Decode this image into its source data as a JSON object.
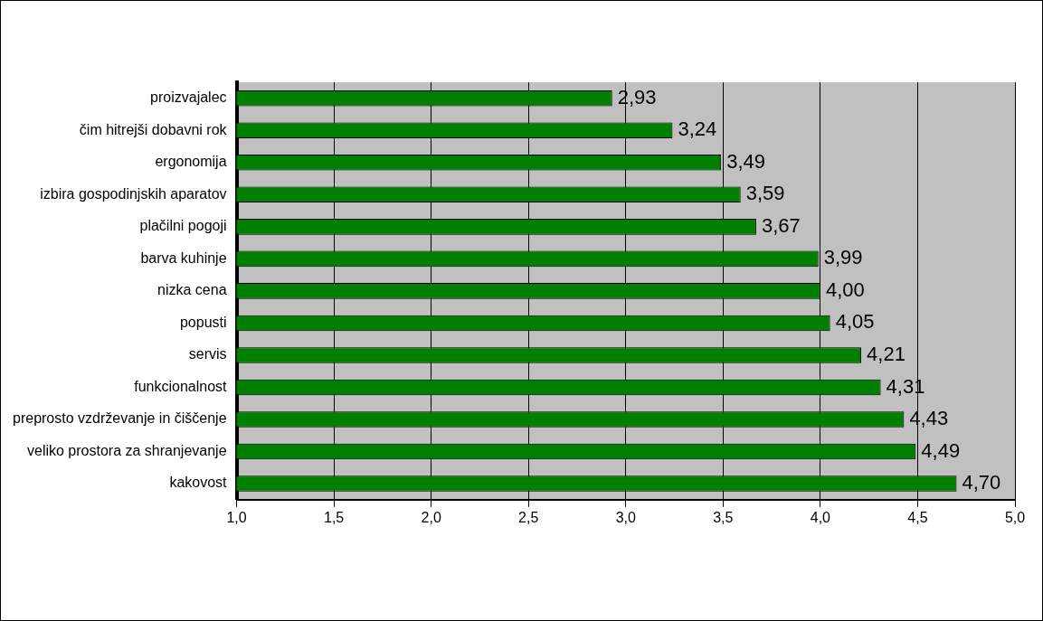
{
  "chart_data": {
    "type": "bar",
    "orientation": "horizontal",
    "categories": [
      "proizvajalec",
      "čim hitrejši dobavni rok",
      "ergonomija",
      "izbira gospodinjskih aparatov",
      "plačilni pogoji",
      "barva kuhinje",
      "nizka cena",
      "popusti",
      "servis",
      "funkcionalnost",
      "preprosto vzdrževanje in čiščenje",
      "veliko prostora za shranjevanje",
      "kakovost"
    ],
    "values": [
      2.93,
      3.24,
      3.49,
      3.59,
      3.67,
      3.99,
      4.0,
      4.05,
      4.21,
      4.31,
      4.43,
      4.49,
      4.7
    ],
    "value_labels": [
      "2,93",
      "3,24",
      "3,49",
      "3,59",
      "3,67",
      "3,99",
      "4,00",
      "4,05",
      "4,21",
      "4,31",
      "4,43",
      "4,49",
      "4,70"
    ],
    "color": "#008000",
    "xlim": [
      1,
      5
    ],
    "xticks": [
      {
        "value": 1,
        "label": "1,0"
      },
      {
        "value": 1.5,
        "label": "1,5"
      },
      {
        "value": 2,
        "label": "2,0"
      },
      {
        "value": 2.5,
        "label": "2,5"
      },
      {
        "value": 3,
        "label": "3,0"
      },
      {
        "value": 3.5,
        "label": "3,5"
      },
      {
        "value": 4,
        "label": "4,0"
      },
      {
        "value": 4.5,
        "label": "4,5"
      },
      {
        "value": 5,
        "label": "5,0"
      }
    ],
    "grid": "x",
    "legend": false
  }
}
